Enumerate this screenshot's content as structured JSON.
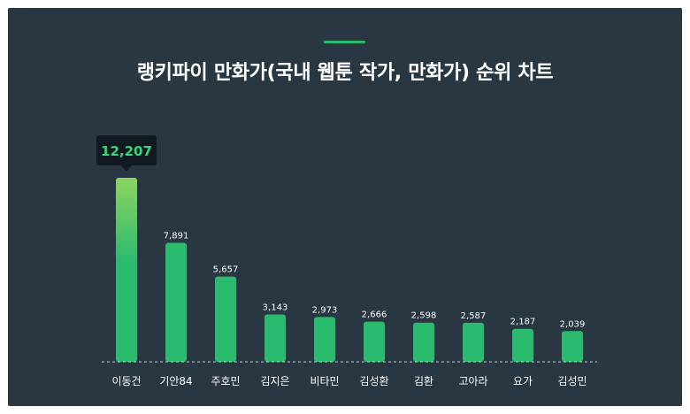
{
  "title": "랭키파이 만화가(국내 웹툰 작가, 만화가) 순위 차트",
  "colors": {
    "background": "#283742",
    "accent": "#2bbb6e",
    "bar": "#2bbb6e",
    "bar_top_highlight": "#8fd45e",
    "tooltip_bg": "#111a21",
    "tooltip_text": "#37d67a"
  },
  "chart_data": {
    "type": "bar",
    "title": "랭키파이 만화가(국내 웹툰 작가, 만화가) 순위 차트",
    "categories": [
      "이동건",
      "기안84",
      "주호민",
      "김지은",
      "비타민",
      "김성환",
      "김환",
      "고아라",
      "요가",
      "김성민"
    ],
    "values": [
      12207,
      7891,
      5657,
      3143,
      2973,
      2666,
      2598,
      2587,
      2187,
      2039
    ],
    "value_labels": [
      "12,207",
      "7,891",
      "5,657",
      "3,143",
      "2,973",
      "2,666",
      "2,598",
      "2,587",
      "2,187",
      "2,039"
    ],
    "highlight_index": 0,
    "ylim": [
      0,
      12207
    ],
    "grid": false,
    "baseline": "dashed"
  }
}
